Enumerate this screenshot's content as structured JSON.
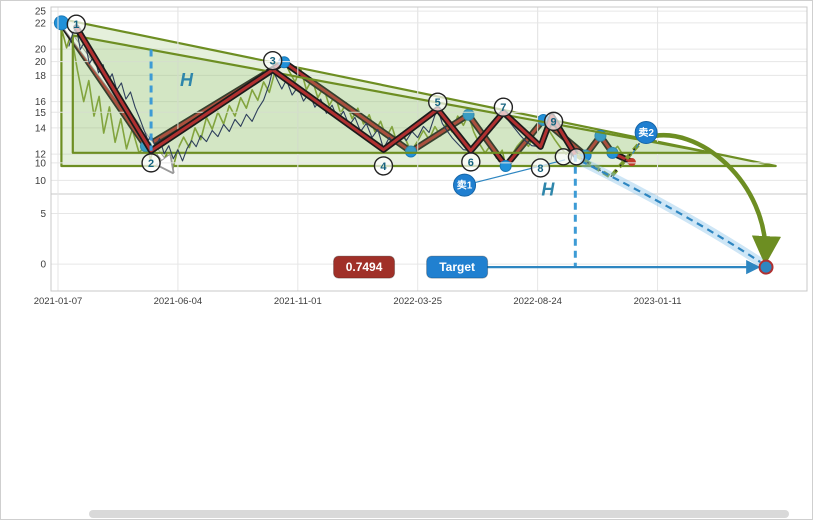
{
  "theme": {
    "background": "#ffffff",
    "grid": "#e6e6e6",
    "panel_border": "#c9c9c9",
    "axis_text": "#3d3d3d",
    "accent_blue": "#2e86c1",
    "accent_green": "#6d8e22",
    "accent_red": "#b03030"
  },
  "x_axis": {
    "ticks": [
      "2021-01-07",
      "2021-06-04",
      "2021-11-01",
      "2022-03-25",
      "2022-08-24",
      "2023-01-11"
    ],
    "tick_units": [
      0,
      21,
      42,
      63,
      84,
      105
    ],
    "max_units": 131
  },
  "scrollbar": {
    "present": true
  },
  "chart_data": [
    {
      "panel": "top",
      "type": "line",
      "title": "",
      "ylim": [
        9.5,
        22.9
      ],
      "yticks": [
        22,
        20,
        18,
        16,
        14,
        12,
        10
      ],
      "triangle": {
        "points": [
          [
            0.6,
            22.3
          ],
          [
            125.7,
            11.1
          ],
          [
            0.6,
            11.1
          ]
        ],
        "color": "#6d8e22",
        "fill": "rgba(150,195,115,0.25)"
      },
      "price": {
        "color": "#7d9b30",
        "points": [
          [
            0.6,
            21.6
          ],
          [
            1.5,
            20.1
          ],
          [
            2.3,
            21.2
          ],
          [
            3.4,
            18.4
          ],
          [
            4.5,
            16.0
          ],
          [
            5.4,
            17.6
          ],
          [
            6.3,
            14.9
          ],
          [
            7.2,
            16.4
          ],
          [
            8.0,
            13.6
          ],
          [
            9.0,
            15.6
          ],
          [
            10.0,
            12.9
          ],
          [
            11.0,
            14.7
          ],
          [
            12.0,
            12.4
          ],
          [
            13.0,
            13.9
          ],
          [
            14.2,
            12.1
          ],
          [
            15.4,
            12.7
          ],
          [
            16.2,
            11.6
          ],
          [
            17.0,
            12.9
          ],
          [
            18.0,
            11.1
          ],
          [
            19.0,
            12.0
          ],
          [
            20.0,
            10.7
          ],
          [
            21.0,
            12.4
          ],
          [
            22.0,
            13.3
          ],
          [
            23.0,
            12.5
          ],
          [
            24.0,
            14.0
          ],
          [
            25.0,
            13.1
          ],
          [
            26.0,
            14.8
          ],
          [
            27.0,
            13.9
          ],
          [
            28.0,
            15.2
          ],
          [
            29.0,
            14.3
          ],
          [
            30.0,
            15.7
          ],
          [
            31.0,
            14.9
          ],
          [
            32.0,
            16.3
          ],
          [
            33.0,
            15.5
          ],
          [
            34.0,
            16.9
          ],
          [
            35.0,
            16.1
          ],
          [
            36.0,
            17.5
          ],
          [
            37.0,
            16.7
          ],
          [
            38.0,
            18.3
          ],
          [
            39.4,
            19.3
          ],
          [
            40.5,
            18.3
          ],
          [
            41.5,
            17.5
          ],
          [
            42.5,
            18.5
          ],
          [
            43.5,
            16.9
          ],
          [
            44.5,
            17.7
          ],
          [
            45.5,
            16.3
          ],
          [
            46.5,
            17.1
          ],
          [
            47.5,
            15.7
          ],
          [
            48.5,
            16.5
          ],
          [
            49.5,
            15.1
          ],
          [
            50.5,
            15.9
          ],
          [
            51.5,
            14.7
          ],
          [
            52.5,
            15.5
          ],
          [
            53.5,
            14.3
          ],
          [
            54.5,
            15.0
          ],
          [
            55.5,
            13.7
          ],
          [
            56.5,
            14.5
          ],
          [
            57.5,
            13.3
          ],
          [
            58.5,
            14.1
          ],
          [
            59.5,
            12.7
          ],
          [
            60.5,
            13.5
          ],
          [
            61.8,
            12.2
          ],
          [
            63.0,
            13.0
          ],
          [
            64.0,
            13.8
          ],
          [
            65.0,
            13.1
          ],
          [
            66.0,
            14.1
          ],
          [
            67.0,
            13.4
          ],
          [
            68.0,
            14.4
          ],
          [
            69.0,
            13.7
          ],
          [
            70.0,
            14.9
          ],
          [
            71.0,
            14.2
          ],
          [
            71.9,
            15.0
          ],
          [
            72.8,
            13.7
          ],
          [
            73.8,
            12.8
          ],
          [
            74.8,
            12.1
          ],
          [
            75.8,
            12.7
          ],
          [
            76.8,
            11.7
          ],
          [
            77.8,
            12.3
          ],
          [
            78.4,
            11.1
          ],
          [
            79.4,
            11.9
          ],
          [
            80.4,
            12.6
          ],
          [
            81.4,
            13.1
          ],
          [
            82.4,
            12.6
          ],
          [
            83.4,
            13.5
          ],
          [
            84.2,
            14.0
          ],
          [
            85.0,
            14.6
          ],
          [
            86.0,
            13.8
          ],
          [
            87.0,
            13.1
          ],
          [
            88.0,
            12.5
          ],
          [
            89.0,
            12.0
          ],
          [
            90.0,
            12.6
          ],
          [
            91.0,
            11.8
          ],
          [
            92.4,
            12.0
          ],
          [
            93.4,
            12.8
          ],
          [
            94.4,
            13.2
          ],
          [
            95.0,
            13.5
          ],
          [
            96.0,
            12.7
          ],
          [
            97.1,
            12.2
          ],
          [
            98.0,
            12.6
          ],
          [
            99.0,
            11.9
          ],
          [
            100.5,
            11.5
          ]
        ]
      },
      "zigzag": {
        "color": "#b03030",
        "points": [
          [
            0.6,
            22.0
          ],
          [
            15.4,
            12.6
          ],
          [
            39.6,
            19.0
          ],
          [
            61.8,
            12.2
          ],
          [
            71.9,
            15.0
          ],
          [
            78.4,
            11.1
          ],
          [
            85.0,
            14.6
          ],
          [
            92.4,
            11.9
          ],
          [
            95.0,
            13.4
          ],
          [
            97.1,
            12.1
          ],
          [
            100.5,
            11.4
          ]
        ]
      },
      "dots": {
        "color": "#2191d9",
        "points": [
          [
            0.6,
            22.0
          ],
          [
            15.4,
            12.6
          ],
          [
            39.6,
            19.0
          ],
          [
            61.8,
            12.2
          ],
          [
            71.9,
            15.0
          ],
          [
            78.4,
            11.1
          ],
          [
            85.0,
            14.6
          ],
          [
            92.4,
            11.9
          ],
          [
            95.0,
            13.4
          ],
          [
            97.1,
            12.1
          ]
        ]
      },
      "end_dot": {
        "color": "#c0392b",
        "point": [
          100.5,
          11.4
        ]
      },
      "white_arrow": {
        "from": [
          1.0,
          21.8
        ],
        "to": [
          19.8,
          10.8
        ]
      }
    },
    {
      "panel": "bottom",
      "type": "line",
      "title": "",
      "ylim": [
        -2.6,
        25.6
      ],
      "yticks": [
        25,
        20,
        15,
        10,
        5,
        0
      ],
      "triangle": {
        "points": [
          [
            2.6,
            22.6
          ],
          [
            114.4,
            11.0
          ],
          [
            2.6,
            11.0
          ]
        ],
        "color": "#6d8e22",
        "fill": "rgba(150,195,115,0.22)"
      },
      "price": {
        "color": "#2e3f5c",
        "points": [
          [
            1.9,
            21.5
          ],
          [
            2.6,
            22.8
          ],
          [
            3.2,
            23.4
          ],
          [
            3.9,
            21.2
          ],
          [
            4.7,
            22.0
          ],
          [
            5.5,
            19.8
          ],
          [
            6.3,
            20.6
          ],
          [
            7.1,
            18.9
          ],
          [
            7.9,
            19.7
          ],
          [
            8.7,
            18.0
          ],
          [
            9.5,
            18.8
          ],
          [
            10.3,
            17.2
          ],
          [
            11.1,
            17.9
          ],
          [
            11.9,
            16.3
          ],
          [
            12.7,
            17.0
          ],
          [
            13.5,
            15.5
          ],
          [
            14.3,
            14.4
          ],
          [
            15.1,
            13.2
          ],
          [
            15.8,
            12.2
          ],
          [
            16.3,
            12.8
          ],
          [
            17.0,
            11.6
          ],
          [
            17.8,
            12.4
          ],
          [
            18.6,
            10.9
          ],
          [
            19.4,
            11.7
          ],
          [
            20.2,
            10.4
          ],
          [
            21.0,
            11.3
          ],
          [
            21.8,
            10.2
          ],
          [
            22.6,
            11.4
          ],
          [
            23.4,
            12.2
          ],
          [
            24.2,
            11.6
          ],
          [
            25.0,
            12.7
          ],
          [
            26.0,
            12.1
          ],
          [
            27.0,
            13.2
          ],
          [
            28.0,
            12.6
          ],
          [
            29.0,
            13.8
          ],
          [
            30.0,
            13.1
          ],
          [
            31.0,
            14.3
          ],
          [
            32.0,
            13.6
          ],
          [
            33.0,
            14.8
          ],
          [
            34.0,
            14.1
          ],
          [
            35.0,
            15.3
          ],
          [
            36.0,
            16.2
          ],
          [
            37.0,
            17.8
          ],
          [
            37.6,
            19.2
          ],
          [
            38.4,
            18.2
          ],
          [
            39.2,
            17.3
          ],
          [
            40.0,
            18.2
          ],
          [
            41.0,
            16.7
          ],
          [
            42.0,
            17.5
          ],
          [
            43.0,
            16.1
          ],
          [
            44.0,
            16.9
          ],
          [
            45.0,
            15.5
          ],
          [
            46.0,
            16.3
          ],
          [
            47.0,
            14.9
          ],
          [
            48.0,
            15.7
          ],
          [
            49.0,
            14.3
          ],
          [
            50.0,
            15.1
          ],
          [
            51.0,
            13.7
          ],
          [
            52.0,
            14.5
          ],
          [
            53.0,
            13.1
          ],
          [
            54.0,
            13.9
          ],
          [
            55.0,
            12.5
          ],
          [
            56.0,
            13.3
          ],
          [
            57.0,
            11.4
          ],
          [
            58.0,
            12.5
          ],
          [
            59.0,
            11.9
          ],
          [
            60.0,
            12.9
          ],
          [
            61.0,
            12.2
          ],
          [
            62.0,
            13.1
          ],
          [
            63.0,
            12.5
          ],
          [
            64.0,
            13.6
          ],
          [
            65.0,
            13.0
          ],
          [
            66.0,
            14.7
          ],
          [
            66.5,
            15.3
          ],
          [
            67.3,
            13.9
          ],
          [
            68.1,
            13.2
          ],
          [
            69.0,
            12.5
          ],
          [
            70.0,
            11.9
          ],
          [
            71.0,
            11.3
          ],
          [
            72.3,
            11.2
          ],
          [
            73.3,
            12.1
          ],
          [
            74.3,
            12.8
          ],
          [
            75.3,
            13.5
          ],
          [
            76.3,
            14.2
          ],
          [
            77.2,
            14.8
          ],
          [
            78.0,
            15.0
          ],
          [
            79.0,
            14.1
          ],
          [
            80.0,
            13.4
          ],
          [
            81.0,
            12.7
          ],
          [
            82.0,
            12.1
          ],
          [
            83.0,
            11.7
          ],
          [
            84.5,
            11.6
          ],
          [
            85.5,
            12.6
          ],
          [
            86.5,
            14.6
          ],
          [
            87.5,
            13.4
          ],
          [
            88.3,
            12.5
          ],
          [
            89.3,
            11.7
          ],
          [
            90.6,
            10.8
          ]
        ]
      },
      "zigzag": {
        "color": "#b03030",
        "points": [
          [
            3.2,
            23.4
          ],
          [
            16.3,
            11.2
          ],
          [
            37.6,
            19.2
          ],
          [
            57.0,
            11.3
          ],
          [
            66.5,
            15.3
          ],
          [
            72.3,
            11.2
          ],
          [
            78.0,
            15.0
          ],
          [
            84.5,
            11.6
          ],
          [
            86.5,
            14.6
          ],
          [
            90.6,
            10.8
          ]
        ]
      },
      "pivot_labels": [
        {
          "n": "1",
          "u": 3.2,
          "v": 23.7
        },
        {
          "n": "2",
          "u": 16.3,
          "v": 10.0
        },
        {
          "n": "3",
          "u": 37.6,
          "v": 20.1
        },
        {
          "n": "4",
          "u": 57.0,
          "v": 9.7
        },
        {
          "n": "5",
          "u": 66.5,
          "v": 16.0
        },
        {
          "n": "6",
          "u": 72.3,
          "v": 10.1
        },
        {
          "n": "7",
          "u": 78.0,
          "v": 15.5
        },
        {
          "n": "8",
          "u": 84.5,
          "v": 9.5
        },
        {
          "n": "9",
          "u": 86.8,
          "v": 14.1
        },
        {
          "n": "",
          "u": 88.5,
          "v": 10.6
        },
        {
          "n": "",
          "u": 90.8,
          "v": 10.6
        }
      ],
      "h_labels": [
        {
          "text": "H",
          "u": 22.5,
          "v": 17.6
        },
        {
          "text": "H",
          "u": 85.8,
          "v": 6.8
        }
      ],
      "dashed_verticals": [
        {
          "u": 16.3,
          "v1": 21.2,
          "v2": 11.2
        },
        {
          "u": 90.6,
          "v1": 10.8,
          "v2": -0.3
        }
      ],
      "sell_markers": [
        {
          "label": "卖1",
          "u": 71.2,
          "v": 7.8,
          "line_to": [
            88.8,
            10.3
          ]
        },
        {
          "label": "卖2",
          "u": 103.0,
          "v": 13.0,
          "line_to": [
            100.6,
            10.9
          ]
        }
      ],
      "projection": {
        "points": [
          [
            90.6,
            10.8
          ],
          [
            96.8,
            8.6
          ],
          [
            103.0,
            12.7
          ]
        ]
      },
      "green_curve": {
        "path": [
          [
            103.2,
            12.5
          ],
          [
            112.0,
            14.0
          ],
          [
            124.5,
            8.0
          ],
          [
            123.9,
            0.6
          ]
        ]
      },
      "blue_curve": {
        "path": [
          [
            91.5,
            10.2
          ],
          [
            110.0,
            5.0
          ],
          [
            123.0,
            0.2
          ]
        ]
      },
      "target_line": {
        "v": -0.3,
        "u_from": 75.2,
        "u_to": 122.4
      },
      "badges": [
        {
          "text": "0.7494",
          "u": 53.6,
          "bg": "#a03028",
          "fg": "#ffffff"
        },
        {
          "text": "Target",
          "u": 69.9,
          "bg": "#2080d0",
          "fg": "#ffffff"
        }
      ],
      "target_dot": {
        "u": 124.0,
        "v": -0.3
      },
      "target_value": "0.7494"
    }
  ]
}
